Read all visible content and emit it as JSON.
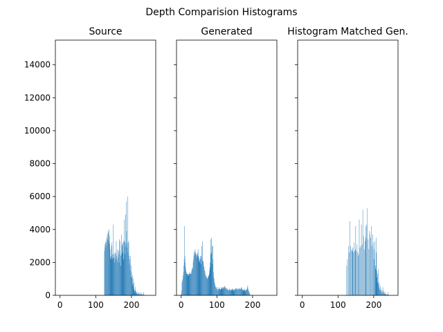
{
  "figure": {
    "suptitle": "Depth Comparision Histograms",
    "bar_color": "#1f77b4"
  },
  "chart_data": [
    {
      "type": "bar",
      "title": "Source",
      "xlim": [
        -13,
        268
      ],
      "ylim": [
        0,
        15500
      ],
      "xticks": [
        0,
        100,
        200
      ],
      "yticks": [
        0,
        2000,
        4000,
        6000,
        8000,
        10000,
        12000,
        14000
      ],
      "show_ytick_labels": true,
      "bins": {
        "start": 124,
        "values": [
          2700,
          3100,
          2900,
          3200,
          3300,
          3000,
          3500,
          3200,
          3700,
          3400,
          3900,
          3800,
          3300,
          4000,
          3600,
          3100,
          2800,
          2300,
          2200,
          2400,
          3200,
          3000,
          2500,
          2200,
          2300,
          4300,
          2500,
          2300,
          2000,
          2600,
          2200,
          2500,
          2600,
          3300,
          2400,
          2200,
          2000,
          2800,
          2300,
          2700,
          2500,
          2000,
          3400,
          2700,
          3300,
          2400,
          1800,
          2500,
          3700,
          3000,
          3100,
          2600,
          3200,
          2200,
          3300,
          4600,
          3300,
          3200,
          2500,
          4900,
          3000,
          5700,
          3900,
          3200,
          2900,
          6000,
          2600,
          3200,
          3300,
          2400,
          1900,
          2200,
          1500,
          2400,
          1100,
          1800,
          1400,
          1100,
          1200,
          700,
          1000,
          600,
          400,
          800,
          300,
          200,
          500,
          300,
          150,
          250,
          100,
          200,
          100,
          80,
          100,
          200,
          60,
          120,
          80,
          50,
          180,
          60,
          40,
          80,
          150,
          30,
          60,
          20,
          40,
          60,
          200,
          30
        ]
      }
    },
    {
      "type": "bar",
      "title": "Generated",
      "xlim": [
        -13,
        268
      ],
      "ylim": [
        0,
        15500
      ],
      "xticks": [
        0,
        100,
        200
      ],
      "yticks": [
        0,
        2000,
        4000,
        6000,
        8000,
        10000,
        12000,
        14000
      ],
      "show_ytick_labels": false,
      "bins": {
        "start": 0,
        "values": [
          100,
          300,
          800,
          900,
          1000,
          1200,
          1400,
          1800,
          2200,
          4200,
          2400,
          2000,
          1700,
          1500,
          1400,
          1300,
          1300,
          1300,
          1200,
          1300,
          1200,
          1300,
          1300,
          1400,
          1300,
          1300,
          1300,
          1400,
          1300,
          1500,
          1600,
          1700,
          1600,
          2000,
          2200,
          2400,
          2700,
          2600,
          2500,
          2800,
          2600,
          2500,
          2500,
          2400,
          2300,
          2600,
          2500,
          2800,
          2400,
          2300,
          2100,
          2200,
          2000,
          2400,
          2200,
          1900,
          2400,
          3000,
          2300,
          3300,
          2100,
          2100,
          2000,
          1800,
          1700,
          1500,
          1500,
          1300,
          1200,
          1100,
          1200,
          1100,
          1000,
          1000,
          1100,
          1100,
          1200,
          1200,
          1300,
          1500,
          1700,
          2000,
          2500,
          3400,
          2600,
          3500,
          3000,
          1900,
          3000,
          2200,
          1400,
          1100,
          1000,
          800,
          700,
          600,
          500,
          500,
          400,
          400,
          500,
          400,
          300,
          300,
          400,
          500,
          400,
          400,
          400,
          350,
          350,
          400,
          500,
          400,
          450,
          400,
          500,
          500,
          450,
          400,
          500,
          500,
          600,
          500,
          450,
          400,
          450,
          400,
          350,
          400,
          350,
          350,
          300,
          300,
          350,
          400,
          350,
          300,
          350,
          300,
          300,
          350,
          400,
          400,
          350,
          300,
          300,
          350,
          300,
          400,
          350,
          350,
          400,
          450,
          400,
          400,
          400,
          350,
          400,
          350,
          350,
          450,
          400,
          400,
          400,
          350,
          400,
          400,
          500,
          450,
          400,
          350,
          300,
          350,
          300,
          300,
          350,
          400,
          300,
          250,
          300,
          350,
          300,
          350,
          400,
          500,
          600,
          400,
          300,
          250,
          200,
          150,
          100
        ]
      }
    },
    {
      "type": "bar",
      "title": "Histogram Matched Gen.",
      "xlim": [
        -13,
        268
      ],
      "ylim": [
        0,
        15500
      ],
      "xticks": [
        0,
        100,
        200
      ],
      "yticks": [
        0,
        2000,
        4000,
        6000,
        8000,
        10000,
        12000,
        14000
      ],
      "show_ytick_labels": false,
      "bins": {
        "start": 124,
        "values": [
          1800,
          0,
          2200,
          0,
          0,
          3000,
          0,
          2600,
          0,
          4500,
          0,
          3000,
          2700,
          0,
          2800,
          0,
          2900,
          2700,
          0,
          2600,
          3200,
          0,
          2700,
          0,
          2800,
          4200,
          0,
          2700,
          0,
          3100,
          0,
          2600,
          2400,
          0,
          2500,
          4600,
          0,
          2900,
          0,
          3000,
          0,
          4300,
          0,
          3100,
          0,
          5200,
          0,
          3600,
          0,
          2800,
          0,
          3300,
          0,
          4200,
          3500,
          0,
          4300,
          0,
          5300,
          0,
          3400,
          0,
          2800,
          0,
          3900,
          3700,
          0,
          3500,
          0,
          4200,
          0,
          3000,
          0,
          3700,
          3200,
          0,
          2200,
          2800,
          3300,
          0,
          1800,
          1600,
          2600,
          3500,
          1500,
          1100,
          1300,
          800,
          1600,
          700,
          500,
          800,
          400,
          300,
          600,
          300,
          200,
          400,
          150,
          250,
          100,
          500,
          200,
          100,
          300,
          150,
          80,
          60,
          200,
          30,
          100,
          40,
          30,
          60,
          20,
          50,
          200,
          20
        ]
      }
    }
  ]
}
